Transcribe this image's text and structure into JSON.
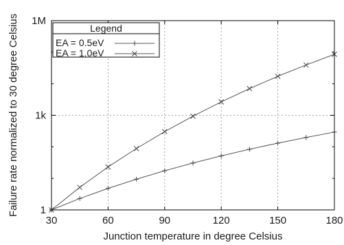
{
  "chart_data": {
    "type": "line",
    "xlabel": "Junction temperature in degree Celsius",
    "ylabel": "Failure rate normalized to 30 degree Celsius",
    "x_scale": "linear",
    "y_scale": "log",
    "xlim": [
      30,
      180
    ],
    "ylim": [
      1,
      1000000
    ],
    "x_ticks": [
      30,
      60,
      90,
      120,
      150,
      180
    ],
    "y_ticks": [
      {
        "value": 1,
        "label": "1"
      },
      {
        "value": 1000,
        "label": "1k"
      },
      {
        "value": 1000000,
        "label": "1M"
      }
    ],
    "grid": true,
    "legend": {
      "title": "Legend",
      "placement": "top-left"
    },
    "series": [
      {
        "name": "EA = 0.5eV",
        "marker": "plus",
        "x": [
          30,
          45,
          60,
          75,
          90,
          105,
          120,
          135,
          150,
          165,
          180
        ],
        "y": [
          1,
          2.3,
          4.8,
          9.4,
          17.4,
          30.6,
          51.6,
          83.7,
          131,
          198,
          293
        ]
      },
      {
        "name": "EA = 1.0eV",
        "marker": "cross",
        "x": [
          30,
          45,
          60,
          75,
          90,
          105,
          120,
          135,
          150,
          165,
          180
        ],
        "y": [
          1,
          5.2,
          23,
          88,
          303,
          935,
          2660,
          7000,
          17200,
          39300,
          85900
        ]
      }
    ]
  }
}
